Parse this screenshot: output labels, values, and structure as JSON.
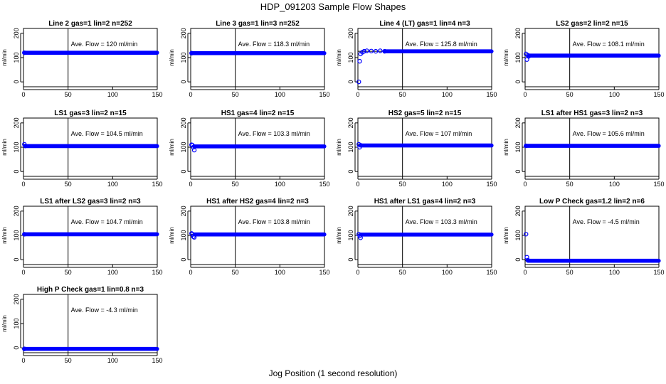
{
  "page": {
    "title": "HDP_091203  Sample Flow Shapes",
    "xlabel": "Jog Position (1 second resolution)"
  },
  "colors": {
    "points": "#0000ff",
    "axes": "#000000"
  },
  "chart_data": [
    {
      "type": "scatter",
      "title": "Line 2 gas=1 lin=2 n=252",
      "annotation": "Ave. Flow =  120  ml/min",
      "ylabel": "ml/min",
      "xlim": [
        0,
        150
      ],
      "ylim": [
        -20,
        220
      ],
      "xticks": [
        0,
        50,
        100,
        150
      ],
      "yticks": [
        0,
        100,
        200
      ],
      "vline_x": 50,
      "hline_y": 120,
      "series": [
        {
          "x": [
            1,
            150
          ],
          "y": [
            120,
            120
          ],
          "style": "dense-run"
        }
      ]
    },
    {
      "type": "scatter",
      "title": "Line 3 gas=1 lin=3 n=252",
      "annotation": "Ave. Flow =  118.3  ml/min",
      "ylabel": "ml/min",
      "xlim": [
        0,
        150
      ],
      "ylim": [
        -20,
        220
      ],
      "xticks": [
        0,
        50,
        100,
        150
      ],
      "yticks": [
        0,
        100,
        200
      ],
      "vline_x": 50,
      "hline_y": 118.3,
      "series": [
        {
          "x": [
            1,
            150
          ],
          "y": [
            118.3,
            118.3
          ],
          "style": "dense-run"
        }
      ]
    },
    {
      "type": "scatter",
      "title": "Line 4 (LT) gas=1 lin=4 n=3",
      "annotation": "Ave. Flow =  125.8  ml/min",
      "ylabel": "ml/min",
      "xlim": [
        0,
        150
      ],
      "ylim": [
        -20,
        220
      ],
      "xticks": [
        0,
        50,
        100,
        150
      ],
      "yticks": [
        0,
        100,
        200
      ],
      "vline_x": 50,
      "hline_y": 125.8,
      "series": [
        {
          "x": [
            1,
            2,
            3,
            5,
            7,
            10,
            15,
            20,
            25,
            30,
            150
          ],
          "y": [
            0,
            85,
            115,
            122,
            126,
            128,
            127,
            126,
            128,
            126,
            125.8
          ],
          "style": "dense-tail"
        }
      ]
    },
    {
      "type": "scatter",
      "title": "LS2 gas=2 lin=2 n=15",
      "annotation": "Ave. Flow =  108.1  ml/min",
      "ylabel": "ml/min",
      "xlim": [
        0,
        150
      ],
      "ylim": [
        -20,
        220
      ],
      "xticks": [
        0,
        50,
        100,
        150
      ],
      "yticks": [
        0,
        100,
        200
      ],
      "vline_x": 50,
      "hline_y": 108.1,
      "series": [
        {
          "x": [
            1,
            2,
            3,
            4,
            150
          ],
          "y": [
            115,
            92,
            110,
            105,
            108.1
          ],
          "style": "dense-tail"
        }
      ]
    },
    {
      "type": "scatter",
      "title": "LS1 gas=3 lin=2 n=15",
      "annotation": "Ave. Flow =  104.5  ml/min",
      "ylabel": "ml/min",
      "xlim": [
        0,
        150
      ],
      "ylim": [
        -20,
        220
      ],
      "xticks": [
        0,
        50,
        100,
        150
      ],
      "yticks": [
        0,
        100,
        200
      ],
      "vline_x": 50,
      "hline_y": 104.5,
      "series": [
        {
          "x": [
            1,
            2,
            150
          ],
          "y": [
            112,
            105,
            104.5
          ],
          "style": "dense-tail"
        }
      ]
    },
    {
      "type": "scatter",
      "title": "HS1 gas=4 lin=2 n=15",
      "annotation": "Ave. Flow =  103.3  ml/min",
      "ylabel": "ml/min",
      "xlim": [
        0,
        150
      ],
      "ylim": [
        -20,
        220
      ],
      "xticks": [
        0,
        50,
        100,
        150
      ],
      "yticks": [
        0,
        100,
        200
      ],
      "vline_x": 50,
      "hline_y": 103.3,
      "series": [
        {
          "x": [
            1,
            2,
            3,
            4,
            150
          ],
          "y": [
            110,
            108,
            100,
            88,
            103.3
          ],
          "style": "dense-tail"
        }
      ]
    },
    {
      "type": "scatter",
      "title": "HS2 gas=5 lin=2 n=15",
      "annotation": "Ave. Flow =  107  ml/min",
      "ylabel": "ml/min",
      "xlim": [
        0,
        150
      ],
      "ylim": [
        -20,
        220
      ],
      "xticks": [
        0,
        50,
        100,
        150
      ],
      "yticks": [
        0,
        100,
        200
      ],
      "vline_x": 50,
      "hline_y": 107,
      "series": [
        {
          "x": [
            1,
            2,
            3,
            150
          ],
          "y": [
            112,
            100,
            108,
            107
          ],
          "style": "dense-tail"
        }
      ]
    },
    {
      "type": "scatter",
      "title": "LS1 after HS1 gas=3 lin=2 n=3",
      "annotation": "Ave. Flow =  105.6  ml/min",
      "ylabel": "ml/min",
      "xlim": [
        0,
        150
      ],
      "ylim": [
        -20,
        220
      ],
      "xticks": [
        0,
        50,
        100,
        150
      ],
      "yticks": [
        0,
        100,
        200
      ],
      "vline_x": 50,
      "hline_y": 105.6,
      "series": [
        {
          "x": [
            1,
            150
          ],
          "y": [
            105.6,
            105.6
          ],
          "style": "dense-run"
        }
      ]
    },
    {
      "type": "scatter",
      "title": "LS1 after LS2 gas=3 lin=2 n=3",
      "annotation": "Ave. Flow =  104.7  ml/min",
      "ylabel": "ml/min",
      "xlim": [
        0,
        150
      ],
      "ylim": [
        -20,
        220
      ],
      "xticks": [
        0,
        50,
        100,
        150
      ],
      "yticks": [
        0,
        100,
        200
      ],
      "vline_x": 50,
      "hline_y": 104.7,
      "series": [
        {
          "x": [
            1,
            150
          ],
          "y": [
            104.7,
            104.7
          ],
          "style": "dense-run"
        }
      ]
    },
    {
      "type": "scatter",
      "title": "HS1 after HS2 gas=4 lin=2 n=3",
      "annotation": "Ave. Flow =  103.8  ml/min",
      "ylabel": "ml/min",
      "xlim": [
        0,
        150
      ],
      "ylim": [
        -20,
        220
      ],
      "xticks": [
        0,
        50,
        100,
        150
      ],
      "yticks": [
        0,
        100,
        200
      ],
      "vline_x": 50,
      "hline_y": 103.8,
      "series": [
        {
          "x": [
            1,
            2,
            3,
            4,
            150
          ],
          "y": [
            108,
            104,
            95,
            92,
            103.8
          ],
          "style": "dense-tail"
        }
      ]
    },
    {
      "type": "scatter",
      "title": "HS1 after LS1 gas=4 lin=2 n=3",
      "annotation": "Ave. Flow =  103.3  ml/min",
      "ylabel": "ml/min",
      "xlim": [
        0,
        150
      ],
      "ylim": [
        -20,
        220
      ],
      "xticks": [
        0,
        50,
        100,
        150
      ],
      "yticks": [
        0,
        100,
        200
      ],
      "vline_x": 50,
      "hline_y": 103.3,
      "series": [
        {
          "x": [
            1,
            2,
            3,
            150
          ],
          "y": [
            105,
            98,
            90,
            103.3
          ],
          "style": "dense-tail"
        }
      ]
    },
    {
      "type": "scatter",
      "title": "Low P Check gas=1.2 lin=2 n=6",
      "annotation": "Ave. Flow =  -4.5  ml/min",
      "ylabel": "ml/min",
      "xlim": [
        0,
        150
      ],
      "ylim": [
        -20,
        220
      ],
      "xticks": [
        0,
        50,
        100,
        150
      ],
      "yticks": [
        0,
        100,
        200
      ],
      "vline_x": 50,
      "hline_y": -4.5,
      "series": [
        {
          "x": [
            1,
            2,
            3,
            150
          ],
          "y": [
            105,
            10,
            -2,
            -4.5
          ],
          "style": "dense-tail"
        }
      ]
    },
    {
      "type": "scatter",
      "title": "High P Check gas=1 lin=0.8 n=3",
      "annotation": "Ave. Flow =  -4.3  ml/min",
      "ylabel": "ml/min",
      "xlim": [
        0,
        150
      ],
      "ylim": [
        -20,
        220
      ],
      "xticks": [
        0,
        50,
        100,
        150
      ],
      "yticks": [
        0,
        100,
        200
      ],
      "vline_x": 50,
      "hline_y": -4.3,
      "series": [
        {
          "x": [
            1,
            150
          ],
          "y": [
            -4.3,
            -4.3
          ],
          "style": "dense-run"
        }
      ]
    }
  ]
}
